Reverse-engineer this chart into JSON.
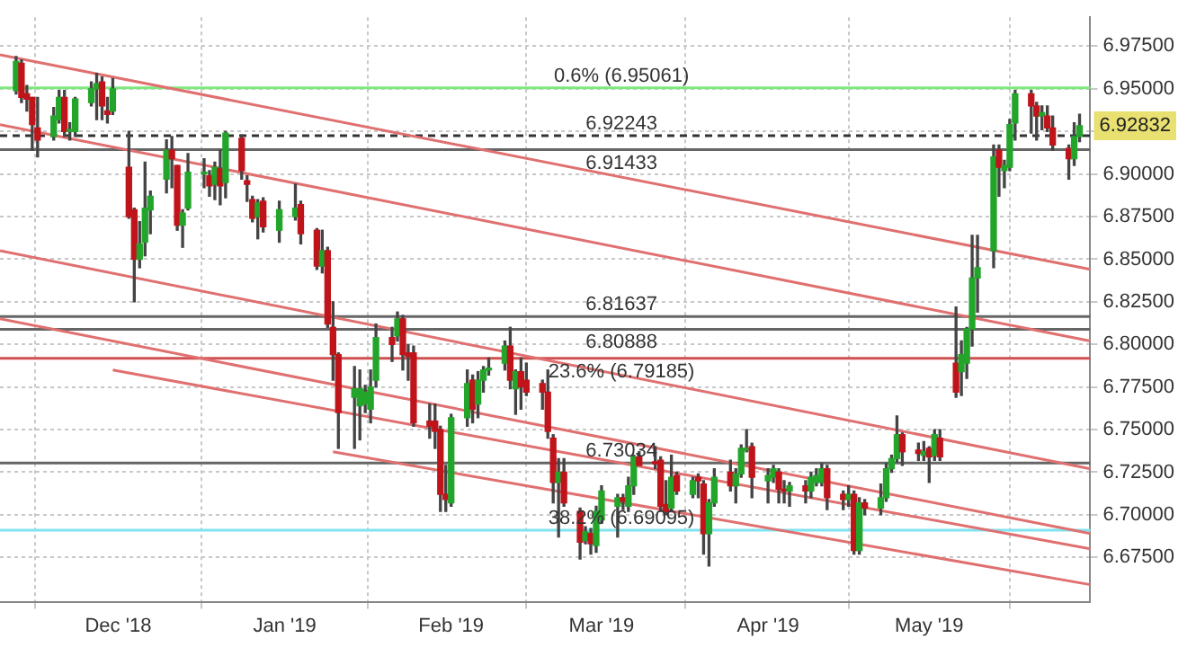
{
  "chart_data": {
    "type": "candlestick",
    "x": [
      "2018-11-12",
      "2018-11-13",
      "2018-11-14",
      "2018-11-15",
      "2018-11-16",
      "2018-11-19",
      "2018-11-20",
      "2018-11-21",
      "2018-11-22",
      "2018-11-23",
      "2018-11-26",
      "2018-11-27",
      "2018-11-28",
      "2018-11-29",
      "2018-11-30",
      "2018-12-03",
      "2018-12-04",
      "2018-12-05",
      "2018-12-06",
      "2018-12-07",
      "2018-12-10",
      "2018-12-11",
      "2018-12-12",
      "2018-12-13",
      "2018-12-14",
      "2018-12-17",
      "2018-12-18",
      "2018-12-19",
      "2018-12-20",
      "2018-12-21",
      "2018-12-24",
      "2018-12-25",
      "2018-12-26",
      "2018-12-27",
      "2018-12-28",
      "2018-12-31",
      "2019-01-03",
      "2019-01-04",
      "2019-01-07",
      "2019-01-08",
      "2019-01-09",
      "2019-01-10",
      "2019-01-11",
      "2019-01-14",
      "2019-01-15",
      "2019-01-16",
      "2019-01-17",
      "2019-01-18",
      "2019-01-21",
      "2019-01-22",
      "2019-01-23",
      "2019-01-24",
      "2019-01-25",
      "2019-01-28",
      "2019-01-29",
      "2019-01-30",
      "2019-01-31",
      "2019-02-01",
      "2019-02-04",
      "2019-02-05",
      "2019-02-06",
      "2019-02-07",
      "2019-02-08",
      "2019-02-11",
      "2019-02-12",
      "2019-02-13",
      "2019-02-14",
      "2019-02-15",
      "2019-02-18",
      "2019-02-19",
      "2019-02-20",
      "2019-02-21",
      "2019-02-22",
      "2019-02-25",
      "2019-02-26",
      "2019-02-27",
      "2019-02-28",
      "2019-03-01",
      "2019-03-04",
      "2019-03-05",
      "2019-03-06",
      "2019-03-07",
      "2019-03-08",
      "2019-03-11",
      "2019-03-12",
      "2019-03-13",
      "2019-03-14",
      "2019-03-15",
      "2019-03-18",
      "2019-03-19",
      "2019-03-20",
      "2019-03-21",
      "2019-03-22",
      "2019-03-25",
      "2019-03-26",
      "2019-03-27",
      "2019-03-28",
      "2019-03-29",
      "2019-04-01",
      "2019-04-02",
      "2019-04-03",
      "2019-04-04",
      "2019-04-05",
      "2019-04-08",
      "2019-04-09",
      "2019-04-10",
      "2019-04-11",
      "2019-04-12",
      "2019-04-15",
      "2019-04-16",
      "2019-04-17",
      "2019-04-18",
      "2019-04-19",
      "2019-04-22",
      "2019-04-23",
      "2019-04-24",
      "2019-04-25",
      "2019-04-26",
      "2019-04-29",
      "2019-04-30",
      "2019-05-01",
      "2019-05-02",
      "2019-05-03",
      "2019-05-06",
      "2019-05-07",
      "2019-05-08",
      "2019-05-09",
      "2019-05-10",
      "2019-05-13",
      "2019-05-14",
      "2019-05-15",
      "2019-05-16",
      "2019-05-17",
      "2019-05-20",
      "2019-05-21",
      "2019-05-22",
      "2019-05-23",
      "2019-05-24",
      "2019-05-27",
      "2019-05-28",
      "2019-05-29"
    ],
    "ohlc": [
      [
        6.949,
        6.969,
        6.947,
        6.966
      ],
      [
        6.965,
        6.967,
        6.942,
        6.945
      ],
      [
        6.947,
        6.952,
        6.937,
        6.944
      ],
      [
        6.945,
        6.945,
        6.914,
        6.929
      ],
      [
        6.927,
        6.945,
        6.91,
        6.92
      ],
      [
        6.922,
        6.939,
        6.92,
        6.934
      ],
      [
        6.932,
        6.949,
        6.93,
        6.945
      ],
      [
        6.945,
        6.949,
        6.922,
        6.925
      ],
      [
        6.925,
        6.93,
        6.92,
        6.926
      ],
      [
        6.925,
        6.945,
        6.922,
        6.944
      ],
      [
        6.942,
        6.954,
        6.94,
        6.95
      ],
      [
        6.95,
        6.959,
        6.932,
        6.953
      ],
      [
        6.954,
        6.957,
        6.932,
        6.94
      ],
      [
        6.937,
        6.945,
        6.93,
        6.935
      ],
      [
        6.937,
        6.956,
        6.935,
        6.95
      ],
      [
        6.904,
        6.925,
        6.874,
        6.875
      ],
      [
        6.879,
        6.88,
        6.825,
        6.85
      ],
      [
        6.85,
        6.872,
        6.845,
        6.859
      ],
      [
        6.86,
        6.907,
        6.852,
        6.88
      ],
      [
        6.879,
        6.89,
        6.865,
        6.887
      ],
      [
        6.897,
        6.92,
        6.889,
        6.914
      ],
      [
        6.914,
        6.922,
        6.892,
        6.909
      ],
      [
        6.905,
        6.905,
        6.867,
        6.87
      ],
      [
        6.87,
        6.879,
        6.857,
        6.877
      ],
      [
        6.88,
        6.912,
        6.879,
        6.901
      ],
      [
        6.9,
        6.909,
        6.892,
        6.901
      ],
      [
        6.899,
        6.902,
        6.887,
        6.893
      ],
      [
        6.894,
        6.907,
        6.885,
        6.904
      ],
      [
        6.903,
        6.914,
        6.882,
        6.893
      ],
      [
        6.895,
        6.925,
        6.886,
        6.924
      ],
      [
        6.921,
        6.923,
        6.897,
        6.902
      ],
      [
        6.896,
        6.899,
        6.884,
        6.894
      ],
      [
        6.885,
        6.887,
        6.872,
        6.874
      ],
      [
        6.875,
        6.885,
        6.862,
        6.883
      ],
      [
        6.884,
        6.886,
        6.866,
        6.869
      ],
      [
        6.867,
        6.884,
        6.86,
        6.879
      ],
      [
        6.875,
        6.894,
        6.873,
        6.88
      ],
      [
        6.882,
        6.884,
        6.859,
        6.865
      ],
      [
        6.867,
        6.868,
        6.844,
        6.846
      ],
      [
        6.846,
        6.867,
        6.842,
        6.855
      ],
      [
        6.855,
        6.857,
        6.81,
        6.812
      ],
      [
        6.81,
        6.825,
        6.779,
        6.794
      ],
      [
        6.794,
        6.795,
        6.739,
        6.76
      ],
      [
        6.769,
        6.787,
        6.739,
        6.774
      ],
      [
        6.764,
        6.785,
        6.744,
        6.774
      ],
      [
        6.765,
        6.776,
        6.76,
        6.772
      ],
      [
        6.762,
        6.785,
        6.754,
        6.775
      ],
      [
        6.779,
        6.812,
        6.775,
        6.804
      ],
      [
        6.804,
        6.81,
        6.79,
        6.8
      ],
      [
        6.805,
        6.819,
        6.802,
        6.815
      ],
      [
        6.815,
        6.817,
        6.785,
        6.794
      ],
      [
        6.795,
        6.8,
        6.779,
        6.793
      ],
      [
        6.795,
        6.799,
        6.752,
        6.754
      ],
      [
        6.755,
        6.765,
        6.745,
        6.752
      ],
      [
        6.755,
        6.765,
        6.739,
        6.749
      ],
      [
        6.75,
        6.752,
        6.702,
        6.712
      ],
      [
        6.712,
        6.729,
        6.702,
        6.709
      ],
      [
        6.707,
        6.759,
        6.705,
        6.757
      ],
      [
        6.757,
        6.785,
        6.752,
        6.777
      ],
      [
        6.779,
        6.782,
        6.754,
        6.762
      ],
      [
        6.765,
        6.784,
        6.757,
        6.779
      ],
      [
        6.779,
        6.787,
        6.772,
        6.785
      ],
      [
        6.785,
        6.792,
        6.782,
        6.786
      ],
      [
        6.789,
        6.802,
        6.785,
        6.799
      ],
      [
        6.799,
        6.81,
        6.774,
        6.779
      ],
      [
        6.774,
        6.785,
        6.759,
        6.784
      ],
      [
        6.784,
        6.792,
        6.762,
        6.775
      ],
      [
        6.779,
        6.789,
        6.77,
        6.772
      ],
      [
        6.777,
        6.779,
        6.762,
        6.772
      ],
      [
        6.772,
        6.785,
        6.745,
        6.749
      ],
      [
        6.745,
        6.747,
        6.707,
        6.719
      ],
      [
        6.719,
        6.733,
        6.687,
        6.725
      ],
      [
        6.725,
        6.733,
        6.705,
        6.707
      ],
      [
        6.702,
        6.704,
        6.674,
        6.684
      ],
      [
        6.685,
        6.693,
        6.683,
        6.69
      ],
      [
        6.689,
        6.692,
        6.677,
        6.683
      ],
      [
        6.682,
        6.705,
        6.678,
        6.702
      ],
      [
        6.697,
        6.717,
        6.695,
        6.714
      ],
      [
        6.705,
        6.712,
        6.687,
        6.71
      ],
      [
        6.71,
        6.712,
        6.703,
        6.708
      ],
      [
        6.705,
        6.722,
        6.702,
        6.717
      ],
      [
        6.717,
        6.735,
        6.712,
        6.734
      ],
      [
        6.734,
        6.737,
        6.729,
        6.729
      ],
      [
        6.731,
        6.74,
        6.727,
        6.73
      ],
      [
        6.732,
        6.734,
        6.702,
        6.705
      ],
      [
        6.706,
        6.72,
        6.7,
        6.702
      ],
      [
        6.704,
        6.735,
        6.702,
        6.722
      ],
      [
        6.723,
        6.725,
        6.712,
        6.714
      ],
      [
        6.712,
        6.722,
        6.71,
        6.72
      ],
      [
        6.722,
        6.724,
        6.71,
        6.72
      ],
      [
        6.718,
        6.72,
        6.677,
        6.689
      ],
      [
        6.689,
        6.709,
        6.67,
        6.707
      ],
      [
        6.707,
        6.727,
        6.705,
        6.722
      ],
      [
        6.725,
        6.732,
        6.714,
        6.717
      ],
      [
        6.717,
        6.727,
        6.707,
        6.724
      ],
      [
        6.724,
        6.741,
        6.722,
        6.739
      ],
      [
        6.738,
        6.75,
        6.737,
        6.739
      ],
      [
        6.74,
        6.742,
        6.71,
        6.722
      ],
      [
        6.72,
        6.727,
        6.707,
        6.723
      ],
      [
        6.722,
        6.729,
        6.719,
        6.727
      ],
      [
        6.725,
        6.727,
        6.707,
        6.715
      ],
      [
        6.715,
        6.72,
        6.707,
        6.714
      ],
      [
        6.714,
        6.719,
        6.705,
        6.717
      ],
      [
        6.717,
        6.72,
        6.707,
        6.714
      ],
      [
        6.714,
        6.725,
        6.71,
        6.722
      ],
      [
        6.719,
        6.727,
        6.717,
        6.723
      ],
      [
        6.719,
        6.73,
        6.717,
        6.727
      ],
      [
        6.727,
        6.729,
        6.703,
        6.71
      ],
      [
        6.712,
        6.714,
        6.703,
        6.709
      ],
      [
        6.709,
        6.717,
        6.705,
        6.712
      ],
      [
        6.712,
        6.714,
        6.677,
        6.679
      ],
      [
        6.679,
        6.71,
        6.677,
        6.707
      ],
      [
        6.707,
        6.709,
        6.7,
        6.704
      ],
      [
        6.704,
        6.718,
        6.7,
        6.71
      ],
      [
        6.71,
        6.73,
        6.708,
        6.727
      ],
      [
        6.727,
        6.735,
        6.725,
        6.733
      ],
      [
        6.733,
        6.758,
        6.731,
        6.747
      ],
      [
        6.747,
        6.748,
        6.729,
        6.737
      ],
      [
        6.738,
        6.742,
        6.732,
        6.736
      ],
      [
        6.735,
        6.743,
        6.732,
        6.737
      ],
      [
        6.739,
        6.74,
        6.719,
        6.734
      ],
      [
        6.735,
        6.75,
        6.732,
        6.747
      ],
      [
        6.745,
        6.75,
        6.732,
        6.734
      ],
      [
        6.789,
        6.822,
        6.769,
        6.772
      ],
      [
        6.784,
        6.802,
        6.77,
        6.794
      ],
      [
        6.789,
        6.81,
        6.78,
        6.809
      ],
      [
        6.809,
        6.864,
        6.799,
        6.839
      ],
      [
        6.839,
        6.864,
        6.819,
        6.845
      ],
      [
        6.855,
        6.917,
        6.845,
        6.91
      ],
      [
        6.914,
        6.917,
        6.887,
        6.904
      ],
      [
        6.902,
        6.908,
        6.892,
        6.905
      ],
      [
        6.904,
        6.932,
        6.902,
        6.929
      ],
      [
        6.93,
        6.949,
        6.92,
        6.947
      ],
      [
        6.947,
        6.949,
        6.924,
        6.94
      ],
      [
        6.94,
        6.942,
        6.92,
        6.934
      ],
      [
        6.934,
        6.94,
        6.926,
        6.936
      ],
      [
        6.934,
        6.94,
        6.925,
        6.927
      ],
      [
        6.927,
        6.934,
        6.914,
        6.917
      ],
      [
        6.915,
        6.917,
        6.897,
        6.909
      ],
      [
        6.909,
        6.93,
        6.905,
        6.922
      ],
      [
        6.922,
        6.935,
        6.919,
        6.92832
      ]
    ],
    "series": [
      {
        "type": "line",
        "x": [
          "2018-11-09",
          "2019-05-31"
        ],
        "values": [
          6.97,
          6.844
        ],
        "color": "#e07070"
      },
      {
        "type": "line",
        "x": [
          "2018-11-09",
          "2019-05-31"
        ],
        "values": [
          6.929,
          6.802
        ],
        "color": "#e07070"
      },
      {
        "type": "line",
        "x": [
          "2018-11-09",
          "2019-05-31"
        ],
        "values": [
          6.855,
          6.727
        ],
        "color": "#e07070"
      },
      {
        "type": "line",
        "x": [
          "2018-11-09",
          "2019-05-31"
        ],
        "values": [
          6.815,
          6.689
        ],
        "color": "#e07070"
      },
      {
        "type": "line",
        "x": [
          "2018-11-30",
          "2019-05-31"
        ],
        "values": [
          6.785,
          6.68
        ],
        "color": "#e07070"
      },
      {
        "type": "line",
        "x": [
          "2019-01-10",
          "2019-05-31"
        ],
        "values": [
          6.737,
          6.659
        ],
        "color": "#e07070"
      }
    ],
    "ref_lines": [
      {
        "axis": "y",
        "value": 6.95061,
        "label": "0.6% (6.95061)",
        "color": "#7ee87e"
      },
      {
        "axis": "y",
        "value": 6.92243,
        "label": "6.92243",
        "color": "#333333",
        "line_style": "dashed"
      },
      {
        "axis": "y",
        "value": 6.91433,
        "label": "6.91433",
        "color": "#666666"
      },
      {
        "axis": "y",
        "value": 6.81637,
        "label": "6.81637",
        "color": "#666666"
      },
      {
        "axis": "y",
        "value": 6.80888,
        "label": "6.80888",
        "color": "#666666"
      },
      {
        "axis": "y",
        "value": 6.79185,
        "label": "23.6% (6.79185)",
        "color": "#d05050"
      },
      {
        "axis": "y",
        "value": 6.73034,
        "label": "6.73034",
        "color": "#666666"
      },
      {
        "axis": "y",
        "value": 6.69095,
        "label": "38.2% (6.69095)",
        "color": "#80e4f0"
      }
    ],
    "annotations": [
      "6.92832"
    ],
    "xlim": [
      "2018-11-09",
      "2019-05-31"
    ],
    "xticks": [
      {
        "value": "2018-12-01",
        "label": "Dec '18"
      },
      {
        "value": "2019-01-01",
        "label": "Jan '19"
      },
      {
        "value": "2019-02-01",
        "label": "Feb '19"
      },
      {
        "value": "2019-03-01",
        "label": "Mar '19"
      },
      {
        "value": "2019-04-01",
        "label": "Apr '19"
      },
      {
        "value": "2019-05-01",
        "label": "May '19"
      }
    ],
    "ylim": [
      6.649,
      6.992
    ],
    "yticks": [
      {
        "value": 6.675,
        "label": "6.67500"
      },
      {
        "value": 6.7,
        "label": "6.70000"
      },
      {
        "value": 6.725,
        "label": "6.72500"
      },
      {
        "value": 6.75,
        "label": "6.75000"
      },
      {
        "value": 6.775,
        "label": "6.77500"
      },
      {
        "value": 6.8,
        "label": "6.80000"
      },
      {
        "value": 6.825,
        "label": "6.82500"
      },
      {
        "value": 6.85,
        "label": "6.85000"
      },
      {
        "value": 6.875,
        "label": "6.87500"
      },
      {
        "value": 6.9,
        "label": "6.90000"
      },
      {
        "value": 6.925,
        "label": null
      },
      {
        "value": 6.95,
        "label": "6.95000"
      },
      {
        "value": 6.975,
        "label": "6.97500"
      }
    ],
    "grid": true,
    "legend": false
  }
}
